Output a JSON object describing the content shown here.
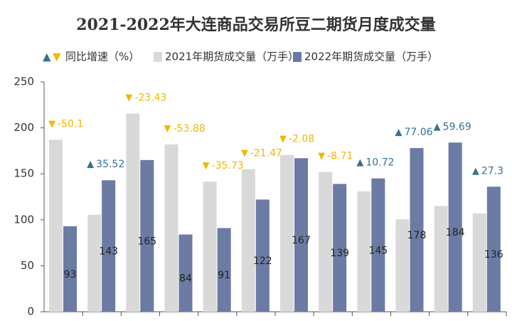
{
  "chart_data": {
    "type": "bar",
    "title": "2021-2022年大连商品交易所豆二期货月度成交量",
    "categories": [
      null,
      null,
      null,
      null,
      null,
      null,
      null,
      null,
      null,
      null,
      null,
      null
    ],
    "series": [
      {
        "name": "2021年期货成交量（万手）",
        "color": "#d9d9d9",
        "values": [
          187,
          105.5,
          215.5,
          182,
          141.5,
          155,
          170.5,
          152,
          131,
          100.5,
          115,
          107
        ]
      },
      {
        "name": "2022年期货成交量（万手）",
        "color": "#6c7ba3",
        "values": [
          93,
          143,
          165,
          84,
          91,
          122,
          167,
          139,
          145,
          178,
          184,
          136
        ]
      }
    ],
    "growth": {
      "name": "同比增速（%）",
      "up_color": "#3a6f91",
      "down_color": "#f2b705",
      "values": [
        -50.1,
        35.52,
        -23.43,
        -53.88,
        -35.73,
        -21.47,
        -2.08,
        -8.71,
        10.72,
        77.06,
        59.69,
        27.3
      ]
    },
    "ylim": [
      0,
      250
    ],
    "yticks": [
      0,
      50,
      100,
      150,
      200,
      250
    ],
    "grid": false
  }
}
